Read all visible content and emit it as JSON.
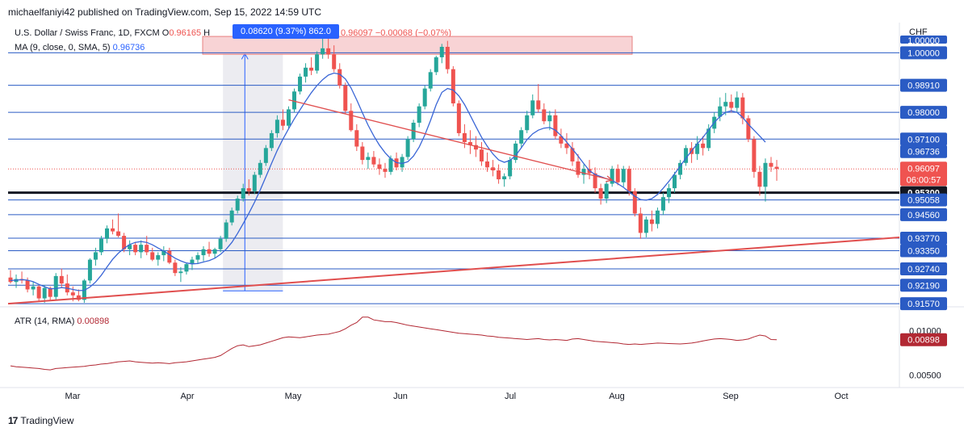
{
  "header": {
    "publisher_line": "michaelfaniyi42 published on TradingView.com, Sep 15, 2022 14:59 UTC"
  },
  "legend": {
    "symbol": "U.S. Dollar / Swiss Franc, 1D, FXCM",
    "open_label": "O",
    "open_value": "0.96165",
    "high_label": "H",
    "close_fragment": "0.96097",
    "change": "−0.00068 (−0.07%)",
    "ma_label": "MA (9, close, 0, SMA, 5)",
    "ma_value": "0.96736"
  },
  "measure_tooltip": "0.08620 (9.37%) 862.0",
  "currency": "CHF",
  "atr_legend": {
    "label": "ATR (14, RMA)",
    "value": "0.00898"
  },
  "footer": {
    "brand": "TradingView",
    "logo": "tv-logo-icon"
  },
  "chart_data": {
    "type": "candlestick",
    "x_ticks": [
      "Mar",
      "Apr",
      "May",
      "Jun",
      "Jul",
      "Aug",
      "Sep",
      "Oct"
    ],
    "price_axis": {
      "ylim": [
        0.9152,
        1.0058
      ],
      "levels": [
        "1.00000",
        "0.98910",
        "0.98000",
        "0.97100",
        "0.95300",
        "0.95058",
        "0.94560",
        "0.93770",
        "0.93350",
        "0.92740",
        "0.92190",
        "0.91570"
      ],
      "partial_top_label": "1.00000",
      "hidden_partial_label": "0.92190"
    },
    "price_labels": {
      "ma": "0.96736",
      "last": "0.96097",
      "countdown": "06:00:57",
      "key_level": "0.95300"
    },
    "horizontal_levels": [
      1.0,
      0.9891,
      0.98,
      0.971,
      0.953,
      0.95058,
      0.9456,
      0.9377,
      0.9335,
      0.9274,
      0.9219,
      0.9157
    ],
    "key_level": 0.953,
    "last_price": 0.96097,
    "resistance_zone": {
      "from": 0.9995,
      "to": 1.0055
    },
    "candles": [
      [
        0.9245,
        0.927,
        0.9225,
        0.923
      ],
      [
        0.923,
        0.9255,
        0.921,
        0.924
      ],
      [
        0.924,
        0.9265,
        0.9225,
        0.9235
      ],
      [
        0.9235,
        0.9245,
        0.9195,
        0.9205
      ],
      [
        0.9205,
        0.923,
        0.9185,
        0.9215
      ],
      [
        0.9215,
        0.922,
        0.9165,
        0.9175
      ],
      [
        0.9175,
        0.922,
        0.916,
        0.921
      ],
      [
        0.921,
        0.9215,
        0.917,
        0.918
      ],
      [
        0.918,
        0.926,
        0.917,
        0.925
      ],
      [
        0.925,
        0.9275,
        0.921,
        0.9225
      ],
      [
        0.9225,
        0.9255,
        0.9185,
        0.9195
      ],
      [
        0.9195,
        0.9215,
        0.9165,
        0.9185
      ],
      [
        0.9185,
        0.9205,
        0.9165,
        0.917
      ],
      [
        0.917,
        0.924,
        0.916,
        0.9235
      ],
      [
        0.9235,
        0.931,
        0.9225,
        0.9305
      ],
      [
        0.9305,
        0.9345,
        0.9285,
        0.933
      ],
      [
        0.933,
        0.9385,
        0.932,
        0.9375
      ],
      [
        0.9375,
        0.942,
        0.936,
        0.941
      ],
      [
        0.941,
        0.944,
        0.939,
        0.94
      ],
      [
        0.94,
        0.946,
        0.938,
        0.9385
      ],
      [
        0.9385,
        0.9395,
        0.933,
        0.934
      ],
      [
        0.934,
        0.937,
        0.932,
        0.9355
      ],
      [
        0.9355,
        0.9365,
        0.932,
        0.933
      ],
      [
        0.933,
        0.937,
        0.931,
        0.9355
      ],
      [
        0.9355,
        0.9385,
        0.932,
        0.933
      ],
      [
        0.933,
        0.9345,
        0.93,
        0.9305
      ],
      [
        0.9305,
        0.933,
        0.9285,
        0.932
      ],
      [
        0.932,
        0.935,
        0.93,
        0.9335
      ],
      [
        0.9335,
        0.9345,
        0.929,
        0.9295
      ],
      [
        0.9295,
        0.9305,
        0.925,
        0.926
      ],
      [
        0.926,
        0.928,
        0.923,
        0.9265
      ],
      [
        0.9265,
        0.9295,
        0.9255,
        0.929
      ],
      [
        0.929,
        0.9315,
        0.927,
        0.9305
      ],
      [
        0.9305,
        0.933,
        0.929,
        0.932
      ],
      [
        0.932,
        0.935,
        0.93,
        0.934
      ],
      [
        0.934,
        0.9365,
        0.9315,
        0.9325
      ],
      [
        0.9325,
        0.9345,
        0.931,
        0.934
      ],
      [
        0.934,
        0.9385,
        0.933,
        0.9375
      ],
      [
        0.9375,
        0.944,
        0.9365,
        0.943
      ],
      [
        0.943,
        0.948,
        0.942,
        0.947
      ],
      [
        0.947,
        0.952,
        0.946,
        0.951
      ],
      [
        0.951,
        0.956,
        0.95,
        0.9545
      ],
      [
        0.9545,
        0.9575,
        0.952,
        0.9535
      ],
      [
        0.9535,
        0.96,
        0.9525,
        0.959
      ],
      [
        0.959,
        0.964,
        0.958,
        0.963
      ],
      [
        0.963,
        0.969,
        0.962,
        0.968
      ],
      [
        0.968,
        0.974,
        0.967,
        0.973
      ],
      [
        0.973,
        0.979,
        0.9715,
        0.9775
      ],
      [
        0.9775,
        0.981,
        0.974,
        0.9755
      ],
      [
        0.9755,
        0.982,
        0.9745,
        0.981
      ],
      [
        0.981,
        0.988,
        0.98,
        0.987
      ],
      [
        0.987,
        0.993,
        0.986,
        0.992
      ],
      [
        0.992,
        0.9965,
        0.99,
        0.995
      ],
      [
        0.995,
        0.9985,
        0.9925,
        0.994
      ],
      [
        0.994,
        1.0005,
        0.993,
        0.9995
      ],
      [
        0.9995,
        1.006,
        0.998,
        1.0015
      ],
      [
        1.0015,
        1.005,
        0.998,
        0.9995
      ],
      [
        0.9995,
        1.0025,
        0.9935,
        0.9945
      ],
      [
        0.9945,
        0.9965,
        0.988,
        0.989
      ],
      [
        0.989,
        0.99,
        0.9795,
        0.9805
      ],
      [
        0.9805,
        0.983,
        0.9735,
        0.974
      ],
      [
        0.974,
        0.976,
        0.967,
        0.9685
      ],
      [
        0.9685,
        0.97,
        0.9625,
        0.964
      ],
      [
        0.964,
        0.9665,
        0.961,
        0.965
      ],
      [
        0.965,
        0.967,
        0.9615,
        0.9625
      ],
      [
        0.9625,
        0.9645,
        0.959,
        0.961
      ],
      [
        0.961,
        0.963,
        0.958,
        0.96
      ],
      [
        0.96,
        0.9655,
        0.959,
        0.9645
      ],
      [
        0.9645,
        0.9665,
        0.9605,
        0.9615
      ],
      [
        0.9615,
        0.966,
        0.96,
        0.965
      ],
      [
        0.965,
        0.972,
        0.964,
        0.971
      ],
      [
        0.971,
        0.9775,
        0.97,
        0.9765
      ],
      [
        0.9765,
        0.983,
        0.975,
        0.982
      ],
      [
        0.982,
        0.989,
        0.981,
        0.988
      ],
      [
        0.988,
        0.9945,
        0.987,
        0.9935
      ],
      [
        0.9935,
        0.999,
        0.9925,
        0.9985
      ],
      [
        0.9985,
        1.003,
        0.9965,
        1.002
      ],
      [
        1.002,
        1.004,
        0.993,
        0.9945
      ],
      [
        0.9945,
        0.9955,
        0.982,
        0.983
      ],
      [
        0.983,
        0.984,
        0.972,
        0.973
      ],
      [
        0.973,
        0.976,
        0.968,
        0.97
      ],
      [
        0.97,
        0.974,
        0.966,
        0.969
      ],
      [
        0.969,
        0.972,
        0.965,
        0.9675
      ],
      [
        0.9675,
        0.97,
        0.962,
        0.9635
      ],
      [
        0.9635,
        0.9665,
        0.96,
        0.9615
      ],
      [
        0.9615,
        0.964,
        0.9585,
        0.9605
      ],
      [
        0.9605,
        0.9625,
        0.956,
        0.9575
      ],
      [
        0.9575,
        0.9595,
        0.955,
        0.9585
      ],
      [
        0.9585,
        0.965,
        0.9575,
        0.964
      ],
      [
        0.964,
        0.9705,
        0.963,
        0.9695
      ],
      [
        0.9695,
        0.975,
        0.968,
        0.974
      ],
      [
        0.974,
        0.9805,
        0.973,
        0.979
      ],
      [
        0.979,
        0.986,
        0.978,
        0.984
      ],
      [
        0.984,
        0.9895,
        0.98,
        0.981
      ],
      [
        0.981,
        0.983,
        0.976,
        0.977
      ],
      [
        0.977,
        0.9805,
        0.974,
        0.979
      ],
      [
        0.979,
        0.981,
        0.971,
        0.972
      ],
      [
        0.972,
        0.9745,
        0.968,
        0.9695
      ],
      [
        0.9695,
        0.973,
        0.966,
        0.968
      ],
      [
        0.968,
        0.97,
        0.962,
        0.9635
      ],
      [
        0.9635,
        0.966,
        0.958,
        0.959
      ],
      [
        0.959,
        0.9625,
        0.956,
        0.961
      ],
      [
        0.961,
        0.964,
        0.9575,
        0.9595
      ],
      [
        0.9595,
        0.9615,
        0.953,
        0.9545
      ],
      [
        0.9545,
        0.956,
        0.949,
        0.951
      ],
      [
        0.951,
        0.957,
        0.9495,
        0.956
      ],
      [
        0.956,
        0.962,
        0.955,
        0.961
      ],
      [
        0.961,
        0.9625,
        0.9555,
        0.9565
      ],
      [
        0.9565,
        0.962,
        0.955,
        0.961
      ],
      [
        0.961,
        0.962,
        0.952,
        0.9535
      ],
      [
        0.9535,
        0.9545,
        0.945,
        0.946
      ],
      [
        0.946,
        0.948,
        0.9375,
        0.9395
      ],
      [
        0.9395,
        0.945,
        0.938,
        0.944
      ],
      [
        0.944,
        0.947,
        0.94,
        0.9425
      ],
      [
        0.9425,
        0.948,
        0.941,
        0.947
      ],
      [
        0.947,
        0.953,
        0.9455,
        0.9515
      ],
      [
        0.9515,
        0.956,
        0.9495,
        0.9545
      ],
      [
        0.9545,
        0.96,
        0.953,
        0.959
      ],
      [
        0.959,
        0.964,
        0.9575,
        0.963
      ],
      [
        0.963,
        0.969,
        0.962,
        0.968
      ],
      [
        0.968,
        0.97,
        0.963,
        0.966
      ],
      [
        0.966,
        0.972,
        0.964,
        0.9695
      ],
      [
        0.9695,
        0.972,
        0.9655,
        0.968
      ],
      [
        0.968,
        0.976,
        0.967,
        0.9745
      ],
      [
        0.9745,
        0.98,
        0.973,
        0.9785
      ],
      [
        0.9785,
        0.985,
        0.977,
        0.982
      ],
      [
        0.982,
        0.9865,
        0.979,
        0.9835
      ],
      [
        0.9835,
        0.986,
        0.98,
        0.9815
      ],
      [
        0.9815,
        0.987,
        0.98,
        0.985
      ],
      [
        0.985,
        0.9865,
        0.976,
        0.978
      ],
      [
        0.978,
        0.979,
        0.97,
        0.971
      ],
      [
        0.971,
        0.972,
        0.958,
        0.96
      ],
      [
        0.96,
        0.962,
        0.952,
        0.955
      ],
      [
        0.955,
        0.9645,
        0.95,
        0.963
      ],
      [
        0.963,
        0.965,
        0.96,
        0.9617
      ],
      [
        0.9617,
        0.964,
        0.957,
        0.961
      ]
    ],
    "ma_series": [
      0.9235,
      0.9236,
      0.9238,
      0.9236,
      0.9231,
      0.9222,
      0.9214,
      0.9207,
      0.9208,
      0.9211,
      0.9209,
      0.9205,
      0.9201,
      0.9202,
      0.9213,
      0.923,
      0.9253,
      0.928,
      0.9306,
      0.9327,
      0.9343,
      0.9356,
      0.9363,
      0.9366,
      0.9363,
      0.9355,
      0.9344,
      0.9334,
      0.9322,
      0.931,
      0.9301,
      0.9294,
      0.9291,
      0.9292,
      0.9297,
      0.9302,
      0.931,
      0.9323,
      0.934,
      0.9363,
      0.9393,
      0.9426,
      0.9461,
      0.9498,
      0.9539,
      0.9584,
      0.9629,
      0.9672,
      0.971,
      0.9745,
      0.9778,
      0.9808,
      0.9838,
      0.9866,
      0.989,
      0.991,
      0.9925,
      0.9932,
      0.9928,
      0.9912,
      0.9882,
      0.9842,
      0.9798,
      0.9757,
      0.9721,
      0.969,
      0.9664,
      0.9644,
      0.9631,
      0.9628,
      0.9634,
      0.9653,
      0.9683,
      0.9724,
      0.9772,
      0.9826,
      0.9867,
      0.988,
      0.9875,
      0.9855,
      0.9826,
      0.979,
      0.9752,
      0.9716,
      0.9686,
      0.966,
      0.964,
      0.9632,
      0.9638,
      0.9655,
      0.9681,
      0.9708,
      0.9728,
      0.974,
      0.9747,
      0.9749,
      0.974,
      0.9722,
      0.97,
      0.9677,
      0.9653,
      0.9628,
      0.9604,
      0.9591,
      0.9584,
      0.9577,
      0.9571,
      0.956,
      0.9548,
      0.9532,
      0.9518,
      0.9507,
      0.9505,
      0.951,
      0.9524,
      0.9545,
      0.9568,
      0.9593,
      0.9619,
      0.9646,
      0.967,
      0.9694,
      0.9716,
      0.9741,
      0.9766,
      0.9786,
      0.98,
      0.9805,
      0.98,
      0.9783,
      0.976,
      0.974,
      0.972,
      0.97
    ],
    "atr_axis": {
      "ylim": [
        0.0038,
        0.0123
      ],
      "tick_labels": [
        "0.01000",
        "0.00500"
      ],
      "ticks": [
        0.01,
        0.005
      ]
    },
    "atr_series": [
      0.00605,
      0.00595,
      0.0059,
      0.00585,
      0.0058,
      0.00575,
      0.00565,
      0.0056,
      0.00575,
      0.0058,
      0.00585,
      0.0059,
      0.00595,
      0.006,
      0.0061,
      0.00615,
      0.00625,
      0.0063,
      0.0064,
      0.0065,
      0.00655,
      0.0066,
      0.0065,
      0.00645,
      0.0064,
      0.00635,
      0.0064,
      0.00635,
      0.0063,
      0.0064,
      0.00645,
      0.0065,
      0.0066,
      0.0067,
      0.0068,
      0.0069,
      0.007,
      0.0072,
      0.0076,
      0.008,
      0.0083,
      0.0084,
      0.0082,
      0.0083,
      0.0084,
      0.0086,
      0.0088,
      0.009,
      0.0092,
      0.0093,
      0.00925,
      0.0092,
      0.0093,
      0.0094,
      0.0095,
      0.00955,
      0.0096,
      0.00975,
      0.0099,
      0.0102,
      0.0106,
      0.0109,
      0.0115,
      0.0115,
      0.0112,
      0.0111,
      0.011,
      0.011,
      0.0109,
      0.01075,
      0.0106,
      0.0105,
      0.0104,
      0.0103,
      0.0102,
      0.0101,
      0.01,
      0.0099,
      0.0098,
      0.0097,
      0.00965,
      0.0096,
      0.00955,
      0.0095,
      0.0094,
      0.00935,
      0.00925,
      0.0092,
      0.00915,
      0.0091,
      0.00905,
      0.009,
      0.00905,
      0.0091,
      0.009,
      0.00895,
      0.009,
      0.00895,
      0.0089,
      0.00905,
      0.0091,
      0.009,
      0.0089,
      0.0088,
      0.00875,
      0.0087,
      0.00865,
      0.0086,
      0.0085,
      0.00845,
      0.0085,
      0.00845,
      0.0085,
      0.00855,
      0.0086,
      0.00858,
      0.00855,
      0.00852,
      0.0085,
      0.00855,
      0.0086,
      0.0087,
      0.00885,
      0.00895,
      0.00905,
      0.0091,
      0.00905,
      0.009,
      0.0089,
      0.00895,
      0.00905,
      0.0093,
      0.0095,
      0.0094,
      0.009,
      0.00898
    ],
    "atr_last_label": "0.00898",
    "trendlines": [
      {
        "name": "support-trendline",
        "from": [
          0,
          0.9157
        ],
        "to": [
          135,
          0.938
        ]
      },
      {
        "name": "descending-trendline",
        "from": [
          49,
          0.9842
        ],
        "to": [
          106,
          0.9572
        ]
      }
    ],
    "measure_range": {
      "from_index": 38,
      "to_index": 46,
      "low": 0.92,
      "high": 1.0
    },
    "grid": false
  }
}
